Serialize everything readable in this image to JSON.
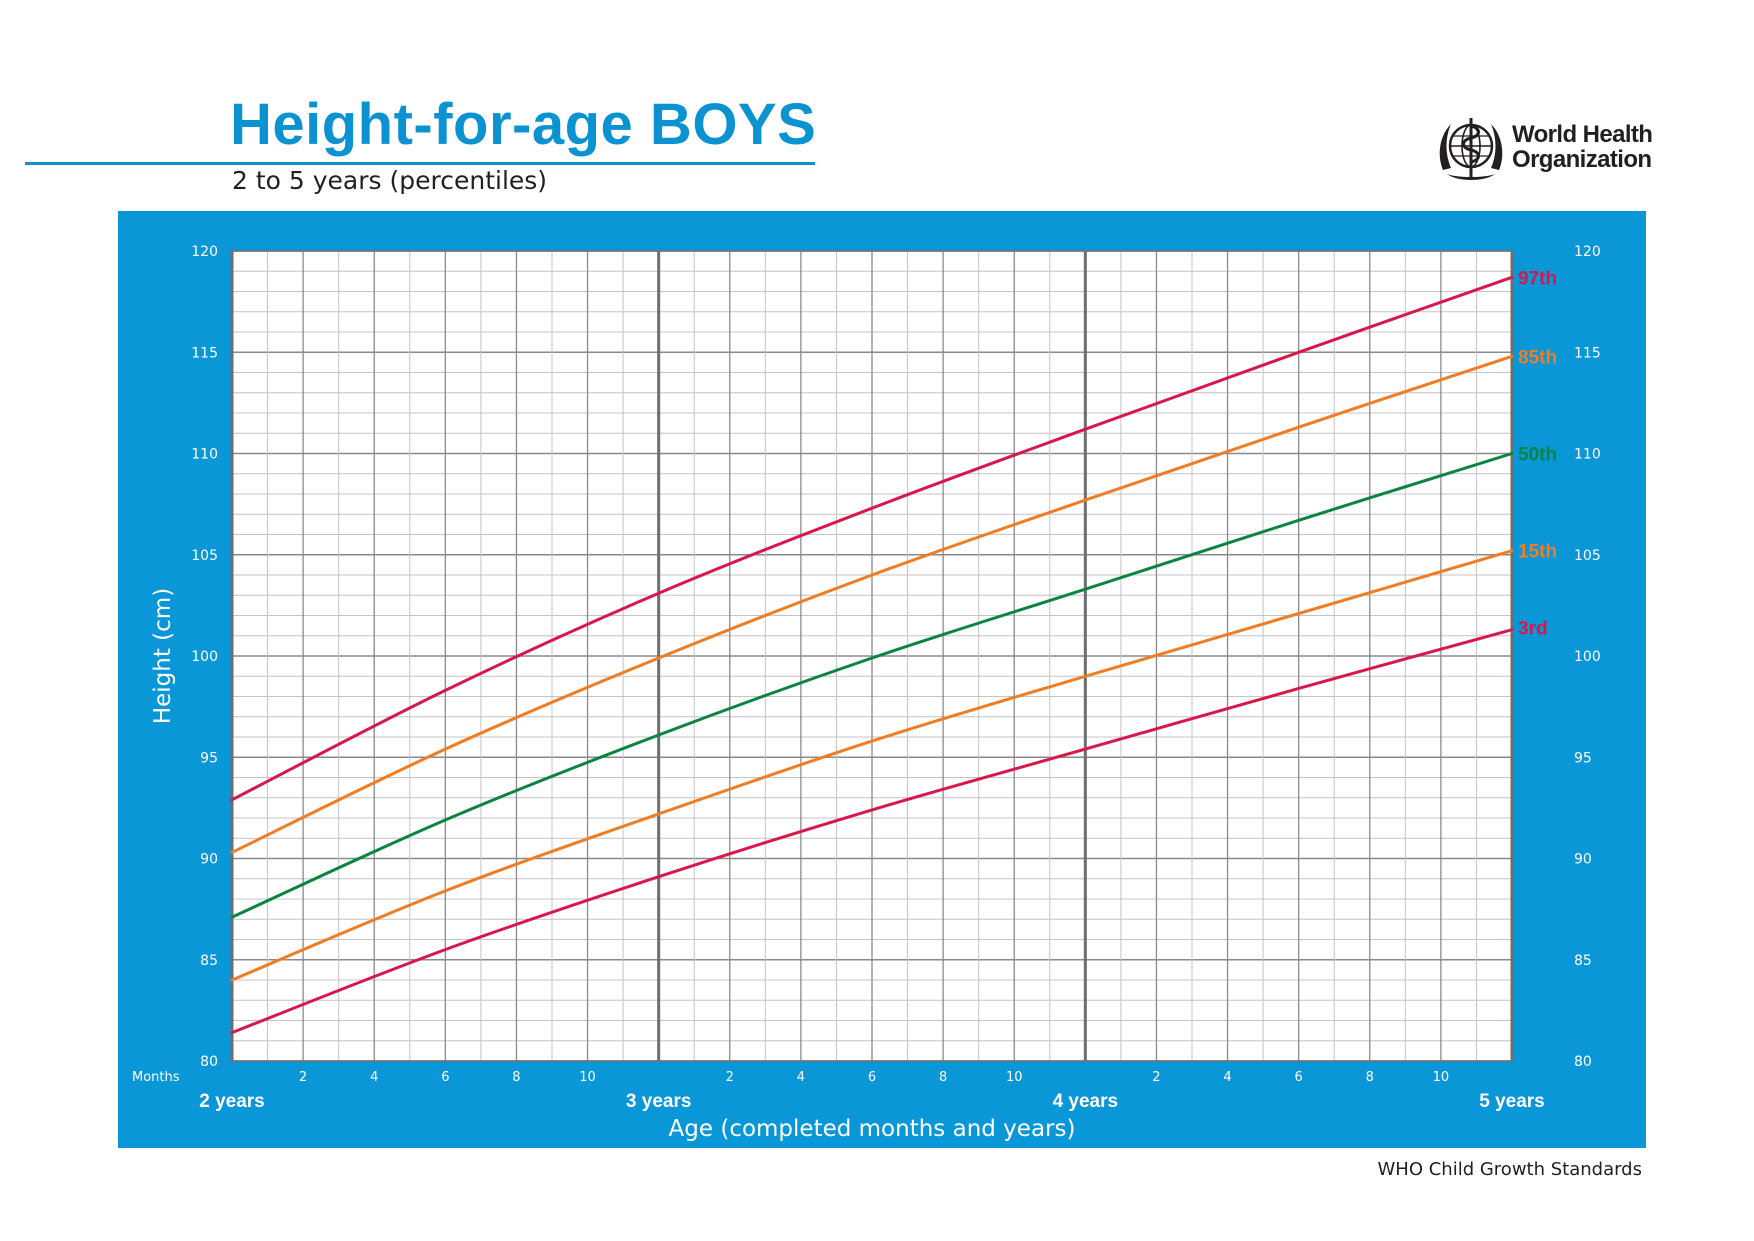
{
  "header": {
    "title": "Height-for-age BOYS",
    "subtitle": "2 to 5 years (percentiles)",
    "org_line1": "World Health",
    "org_line2": "Organization",
    "logo_icon": "who-emblem-icon"
  },
  "footer": {
    "text": "WHO Child Growth Standards"
  },
  "colors": {
    "brand_blue": "#0a97d7",
    "p97": "#d8174a",
    "p85": "#f07d22",
    "p50": "#0b8440",
    "p15": "#f07d22",
    "p3": "#d8174a"
  },
  "chart_data": {
    "type": "line",
    "title": "Height-for-age BOYS",
    "subtitle": "2 to 5 years (percentiles)",
    "xlabel": "Age (completed months and years)",
    "ylabel": "Height (cm)",
    "x_unit_label": "Months",
    "xlim": [
      24,
      60
    ],
    "ylim": [
      80,
      120
    ],
    "y_ticks": [
      80,
      85,
      90,
      95,
      100,
      105,
      110,
      115,
      120
    ],
    "x_month_ticks": [
      {
        "x": 26,
        "label": "2"
      },
      {
        "x": 28,
        "label": "4"
      },
      {
        "x": 30,
        "label": "6"
      },
      {
        "x": 32,
        "label": "8"
      },
      {
        "x": 34,
        "label": "10"
      },
      {
        "x": 38,
        "label": "2"
      },
      {
        "x": 40,
        "label": "4"
      },
      {
        "x": 42,
        "label": "6"
      },
      {
        "x": 44,
        "label": "8"
      },
      {
        "x": 46,
        "label": "10"
      },
      {
        "x": 50,
        "label": "2"
      },
      {
        "x": 52,
        "label": "4"
      },
      {
        "x": 54,
        "label": "6"
      },
      {
        "x": 56,
        "label": "8"
      },
      {
        "x": 58,
        "label": "10"
      }
    ],
    "x_year_ticks": [
      {
        "x": 24,
        "label": "2 years"
      },
      {
        "x": 36,
        "label": "3 years"
      },
      {
        "x": 48,
        "label": "4 years"
      },
      {
        "x": 60,
        "label": "5 years"
      }
    ],
    "grid": true,
    "x": [
      24,
      30,
      36,
      42,
      48,
      54,
      60
    ],
    "series": [
      {
        "name": "97th",
        "color_key": "p97",
        "values": [
          92.9,
          98.3,
          103.1,
          107.3,
          111.2,
          115.0,
          118.7
        ]
      },
      {
        "name": "85th",
        "color_key": "p85",
        "values": [
          90.3,
          95.4,
          99.9,
          104.0,
          107.7,
          111.3,
          114.8
        ]
      },
      {
        "name": "50th",
        "color_key": "p50",
        "values": [
          87.1,
          91.9,
          96.1,
          99.9,
          103.3,
          106.7,
          110.0
        ]
      },
      {
        "name": "15th",
        "color_key": "p15",
        "values": [
          84.0,
          88.4,
          92.2,
          95.8,
          99.0,
          102.1,
          105.2
        ]
      },
      {
        "name": "3rd",
        "color_key": "p3",
        "values": [
          81.4,
          85.5,
          89.1,
          92.4,
          95.4,
          98.4,
          101.3
        ]
      }
    ]
  }
}
